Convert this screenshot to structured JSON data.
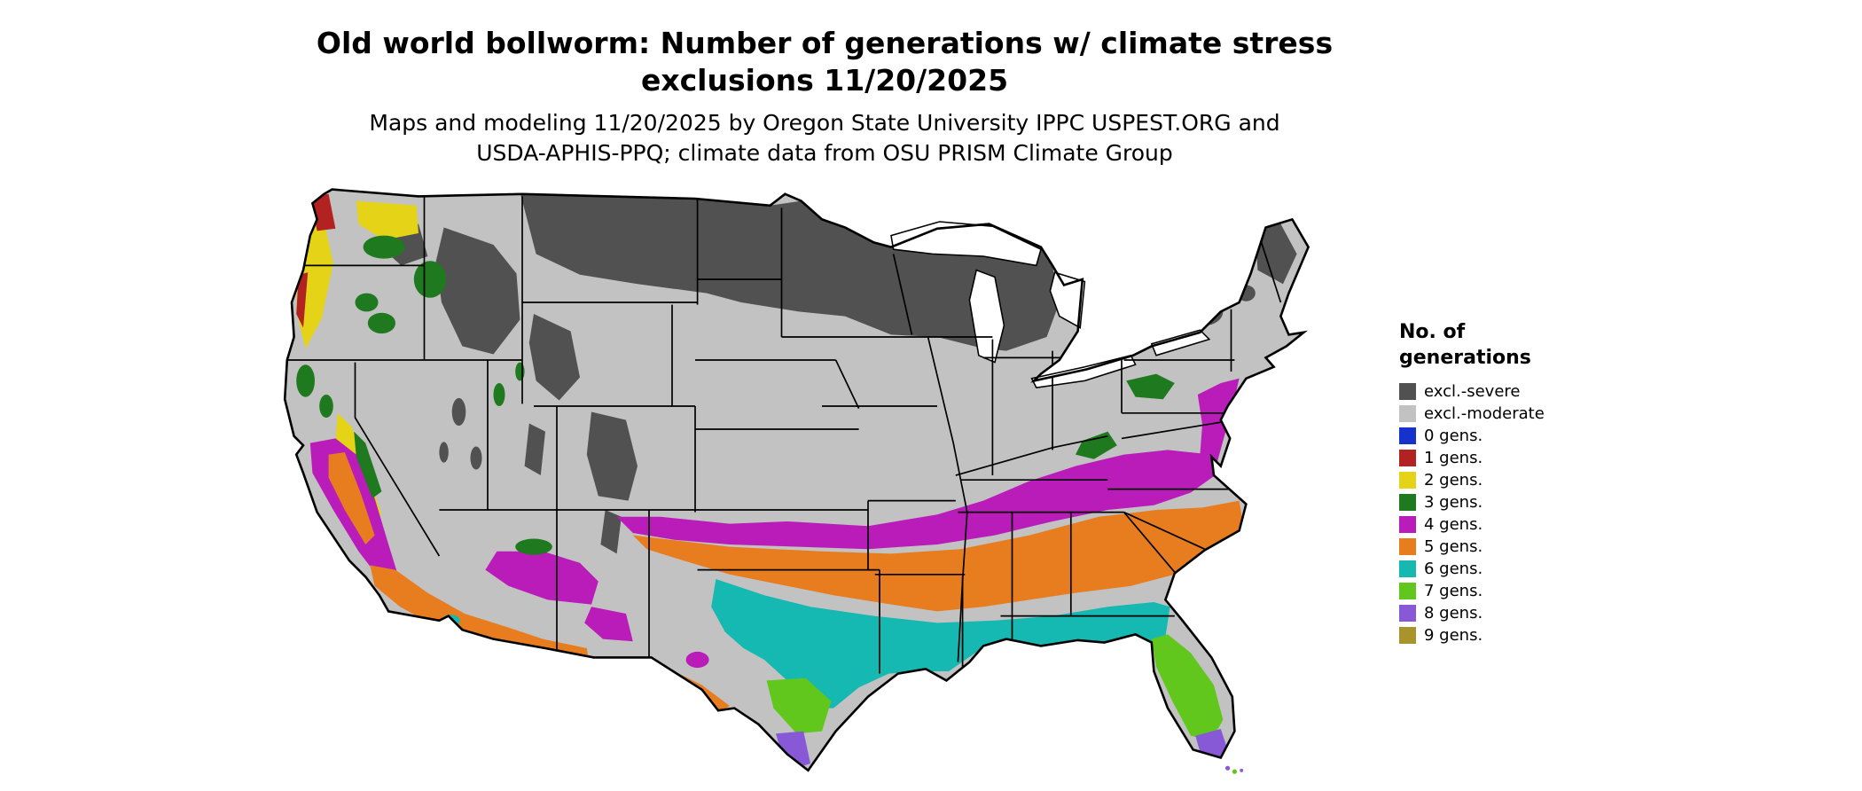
{
  "header": {
    "title_line1": "Old world bollworm: Number of generations w/ climate stress",
    "title_line2": "exclusions 11/20/2025",
    "subtitle_line1": "Maps and modeling 11/20/2025 by Oregon State University IPPC USPEST.ORG and",
    "subtitle_line2": "USDA-APHIS-PPQ; climate data from OSU PRISM Climate Group"
  },
  "palette": {
    "severe": "#515151",
    "moderate": "#c2c2c2",
    "gen0": "#1632cd",
    "gen1": "#b22220",
    "gen2": "#e5d318",
    "gen3": "#1f7a1f",
    "gen4": "#ba1cba",
    "gen5": "#e87d1f",
    "gen6": "#16b8b2",
    "gen7": "#62c71c",
    "gen8": "#8759d6",
    "gen9": "#a9932b",
    "outline": "#000000",
    "water": "#ffffff"
  },
  "legend": {
    "title_line1": "No. of",
    "title_line2": "generations",
    "entries": [
      {
        "key": "severe",
        "label": "excl.-severe"
      },
      {
        "key": "moderate",
        "label": "excl.-moderate"
      },
      {
        "key": "gen0",
        "label": "0 gens."
      },
      {
        "key": "gen1",
        "label": "1 gens."
      },
      {
        "key": "gen2",
        "label": "2 gens."
      },
      {
        "key": "gen3",
        "label": "3 gens."
      },
      {
        "key": "gen4",
        "label": "4 gens."
      },
      {
        "key": "gen5",
        "label": "5 gens."
      },
      {
        "key": "gen6",
        "label": "6 gens."
      },
      {
        "key": "gen7",
        "label": "7 gens."
      },
      {
        "key": "gen8",
        "label": "8 gens."
      },
      {
        "key": "gen9",
        "label": "9 gens."
      }
    ]
  }
}
